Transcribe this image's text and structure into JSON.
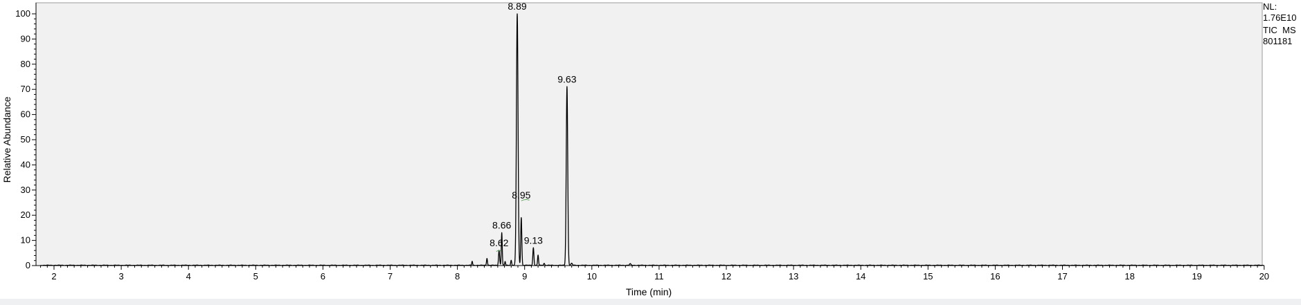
{
  "chart_data": {
    "type": "line",
    "xlabel": "Time (min)",
    "ylabel": "Relative Abundance",
    "xlim": [
      1.8,
      20.0
    ],
    "ylim": [
      0,
      100
    ],
    "xticks": [
      2,
      3,
      4,
      5,
      6,
      7,
      8,
      9,
      10,
      11,
      12,
      13,
      14,
      15,
      16,
      17,
      18,
      19,
      20
    ],
    "yticks": [
      0,
      10,
      20,
      30,
      40,
      50,
      60,
      70,
      80,
      90,
      100
    ],
    "grid": false,
    "info": {
      "nl_label": "NL:",
      "nl_value": "1.76E10",
      "filter": "TIC  MS",
      "sample": "801181"
    },
    "peaks": [
      {
        "rt": 8.22,
        "height": 1.6,
        "width": 0.006
      },
      {
        "rt": 8.44,
        "height": 2.8,
        "width": 0.007
      },
      {
        "rt": 8.62,
        "height": 6.0,
        "width": 0.008,
        "label": "8.62"
      },
      {
        "rt": 8.66,
        "height": 13.0,
        "width": 0.007,
        "label": "8.66"
      },
      {
        "rt": 8.71,
        "height": 1.5,
        "width": 0.006
      },
      {
        "rt": 8.8,
        "height": 2.0,
        "width": 0.007
      },
      {
        "rt": 8.89,
        "height": 100.0,
        "width": 0.012,
        "label": "8.89"
      },
      {
        "rt": 8.95,
        "height": 19.0,
        "width": 0.008,
        "label": "8.95"
      },
      {
        "rt": 9.13,
        "height": 7.0,
        "width": 0.008,
        "label": "9.13"
      },
      {
        "rt": 9.2,
        "height": 4.0,
        "width": 0.007
      },
      {
        "rt": 9.29,
        "height": 0.8,
        "width": 0.008
      },
      {
        "rt": 9.63,
        "height": 71.0,
        "width": 0.011,
        "label": "9.63"
      },
      {
        "rt": 9.7,
        "height": 0.8,
        "width": 0.01
      },
      {
        "rt": 10.57,
        "height": 0.6,
        "width": 0.01
      }
    ],
    "annotations": [
      {
        "text": "8.89",
        "rt": 8.89,
        "y": 100
      },
      {
        "text": "9.63",
        "rt": 9.63,
        "y": 71
      },
      {
        "text": "8.95",
        "rt": 8.95,
        "y": 25
      },
      {
        "text": "8.66",
        "rt": 8.66,
        "y": 13
      },
      {
        "text": "8.62",
        "rt": 8.62,
        "y": 6
      },
      {
        "text": "9.13",
        "rt": 9.13,
        "y": 7
      }
    ]
  }
}
